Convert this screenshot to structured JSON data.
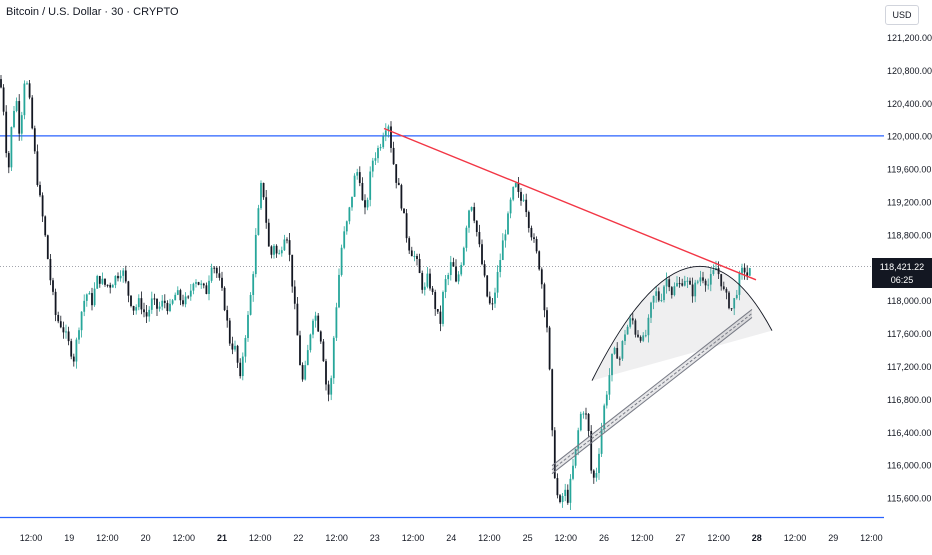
{
  "header": {
    "symbol_title": "Bitcoin / U.S. Dollar · 30 · CRYPTO",
    "currency_button": "USD"
  },
  "price_badge": {
    "price": "118,421.22",
    "countdown": "06:25",
    "color": "#131722"
  },
  "colors": {
    "up": "#26a69a",
    "down": "#131722",
    "horizontal_lines": "#2962ff",
    "trendline": "#f23645",
    "channel": "#787b86",
    "arc": "#131722"
  },
  "chart_data": {
    "type": "candlestick",
    "title": "Bitcoin / U.S. Dollar · 30 · CRYPTO",
    "y_ticks": [
      "121,200.00",
      "120,800.00",
      "120,400.00",
      "120,000.00",
      "119,600.00",
      "119,200.00",
      "118,800.00",
      "118,400.00",
      "118,000.00",
      "117,600.00",
      "117,200.00",
      "116,800.00",
      "116,400.00",
      "116,000.00",
      "115,600.00"
    ],
    "y_tick_values": [
      121200,
      120800,
      120400,
      120000,
      119600,
      119200,
      118800,
      118400,
      118000,
      117600,
      117200,
      116800,
      116400,
      116000,
      115600
    ],
    "x_ticks": [
      {
        "label": "12:00",
        "bold": false
      },
      {
        "label": "19",
        "bold": false
      },
      {
        "label": "12:00",
        "bold": false
      },
      {
        "label": "20",
        "bold": false
      },
      {
        "label": "12:00",
        "bold": false
      },
      {
        "label": "21",
        "bold": true
      },
      {
        "label": "12:00",
        "bold": false
      },
      {
        "label": "22",
        "bold": false
      },
      {
        "label": "12:00",
        "bold": false
      },
      {
        "label": "23",
        "bold": false
      },
      {
        "label": "12:00",
        "bold": false
      },
      {
        "label": "24",
        "bold": false
      },
      {
        "label": "12:00",
        "bold": false
      },
      {
        "label": "25",
        "bold": false
      },
      {
        "label": "12:00",
        "bold": false
      },
      {
        "label": "26",
        "bold": false
      },
      {
        "label": "12:00",
        "bold": false
      },
      {
        "label": "27",
        "bold": false
      },
      {
        "label": "12:00",
        "bold": false
      },
      {
        "label": "28",
        "bold": true
      },
      {
        "label": "12:00",
        "bold": false
      },
      {
        "label": "29",
        "bold": false
      },
      {
        "label": "12:00",
        "bold": false
      }
    ],
    "price_path": [
      [
        0,
        120700
      ],
      [
        4,
        120300
      ],
      [
        8,
        119500
      ],
      [
        12,
        120200
      ],
      [
        16,
        120500
      ],
      [
        20,
        120000
      ],
      [
        24,
        120700
      ],
      [
        28,
        120600
      ],
      [
        33,
        120000
      ],
      [
        38,
        119400
      ],
      [
        44,
        118900
      ],
      [
        50,
        118300
      ],
      [
        56,
        117800
      ],
      [
        62,
        117700
      ],
      [
        68,
        117500
      ],
      [
        74,
        117300
      ],
      [
        80,
        117800
      ],
      [
        86,
        118100
      ],
      [
        92,
        118000
      ],
      [
        98,
        118300
      ],
      [
        104,
        118200
      ],
      [
        110,
        118200
      ],
      [
        116,
        118300
      ],
      [
        122,
        118400
      ],
      [
        128,
        118100
      ],
      [
        134,
        117900
      ],
      [
        140,
        118000
      ],
      [
        146,
        117800
      ],
      [
        152,
        118000
      ],
      [
        158,
        117900
      ],
      [
        164,
        118000
      ],
      [
        170,
        117900
      ],
      [
        176,
        118100
      ],
      [
        182,
        118000
      ],
      [
        188,
        118000
      ],
      [
        194,
        118300
      ],
      [
        200,
        118200
      ],
      [
        206,
        118100
      ],
      [
        212,
        118500
      ],
      [
        218,
        118300
      ],
      [
        224,
        118000
      ],
      [
        230,
        117500
      ],
      [
        236,
        117400
      ],
      [
        240,
        117000
      ],
      [
        244,
        117500
      ],
      [
        248,
        117800
      ],
      [
        252,
        118200
      ],
      [
        256,
        118800
      ],
      [
        262,
        119500
      ],
      [
        266,
        119000
      ],
      [
        270,
        118500
      ],
      [
        274,
        118700
      ],
      [
        278,
        118500
      ],
      [
        282,
        118700
      ],
      [
        286,
        118900
      ],
      [
        290,
        118500
      ],
      [
        294,
        118000
      ],
      [
        298,
        117500
      ],
      [
        302,
        117000
      ],
      [
        306,
        117200
      ],
      [
        310,
        117600
      ],
      [
        314,
        117900
      ],
      [
        318,
        117700
      ],
      [
        322,
        117500
      ],
      [
        326,
        117000
      ],
      [
        330,
        116800
      ],
      [
        334,
        117600
      ],
      [
        338,
        118200
      ],
      [
        342,
        118700
      ],
      [
        348,
        119000
      ],
      [
        352,
        119300
      ],
      [
        356,
        119600
      ],
      [
        360,
        119500
      ],
      [
        364,
        119000
      ],
      [
        368,
        119300
      ],
      [
        372,
        119700
      ],
      [
        376,
        119800
      ],
      [
        380,
        119900
      ],
      [
        384,
        120100
      ],
      [
        388,
        120200
      ],
      [
        392,
        119800
      ],
      [
        396,
        119500
      ],
      [
        400,
        119300
      ],
      [
        404,
        119000
      ],
      [
        408,
        118700
      ],
      [
        412,
        118600
      ],
      [
        416,
        118500
      ],
      [
        420,
        118300
      ],
      [
        424,
        118100
      ],
      [
        428,
        118300
      ],
      [
        432,
        118100
      ],
      [
        436,
        117900
      ],
      [
        440,
        117700
      ],
      [
        444,
        118200
      ],
      [
        448,
        118300
      ],
      [
        452,
        118500
      ],
      [
        456,
        118200
      ],
      [
        460,
        118400
      ],
      [
        464,
        118700
      ],
      [
        468,
        119100
      ],
      [
        472,
        119200
      ],
      [
        476,
        118900
      ],
      [
        480,
        118600
      ],
      [
        484,
        118300
      ],
      [
        488,
        118000
      ],
      [
        492,
        117900
      ],
      [
        496,
        118200
      ],
      [
        500,
        118500
      ],
      [
        504,
        118800
      ],
      [
        508,
        119000
      ],
      [
        512,
        119300
      ],
      [
        516,
        119400
      ],
      [
        520,
        119200
      ],
      [
        524,
        119300
      ],
      [
        528,
        119000
      ],
      [
        532,
        118800
      ],
      [
        536,
        118600
      ],
      [
        540,
        118400
      ],
      [
        544,
        118000
      ],
      [
        548,
        117600
      ],
      [
        552,
        116400
      ],
      [
        556,
        115700
      ],
      [
        560,
        115500
      ],
      [
        564,
        115700
      ],
      [
        568,
        115600
      ],
      [
        572,
        115900
      ],
      [
        576,
        116200
      ],
      [
        580,
        116600
      ],
      [
        584,
        116700
      ],
      [
        588,
        116500
      ],
      [
        592,
        115800
      ],
      [
        596,
        115900
      ],
      [
        600,
        116300
      ],
      [
        604,
        116700
      ],
      [
        608,
        117000
      ],
      [
        612,
        117300
      ],
      [
        616,
        117400
      ],
      [
        620,
        117300
      ],
      [
        624,
        117600
      ],
      [
        628,
        117700
      ],
      [
        632,
        117800
      ],
      [
        636,
        117600
      ],
      [
        640,
        117600
      ],
      [
        644,
        117500
      ],
      [
        648,
        117700
      ],
      [
        652,
        118000
      ],
      [
        656,
        118100
      ],
      [
        660,
        118000
      ],
      [
        664,
        118200
      ],
      [
        668,
        118300
      ],
      [
        672,
        118100
      ],
      [
        676,
        118200
      ],
      [
        680,
        118200
      ],
      [
        684,
        118300
      ],
      [
        688,
        118200
      ],
      [
        692,
        118100
      ],
      [
        696,
        118200
      ],
      [
        700,
        118300
      ],
      [
        704,
        118300
      ],
      [
        708,
        118200
      ],
      [
        712,
        118300
      ],
      [
        716,
        118400
      ],
      [
        720,
        118300
      ],
      [
        724,
        118100
      ],
      [
        728,
        118000
      ],
      [
        732,
        117900
      ],
      [
        736,
        118100
      ],
      [
        740,
        118300
      ],
      [
        744,
        118400
      ],
      [
        748,
        118300
      ],
      [
        752,
        118420
      ]
    ],
    "horizontal_levels": [
      120010,
      115370
    ],
    "trendline": {
      "from": [
        384,
        120100
      ],
      "to": [
        756,
        118260
      ]
    },
    "channel": {
      "from": [
        552,
        116000
      ],
      "to": [
        752,
        117900
      ],
      "offset": 60
    },
    "arc": {
      "cx": 692,
      "cy": 118250,
      "rx": 100,
      "ry": 600
    },
    "current_price": 118421.22,
    "ylim": [
      115600,
      121200
    ]
  }
}
